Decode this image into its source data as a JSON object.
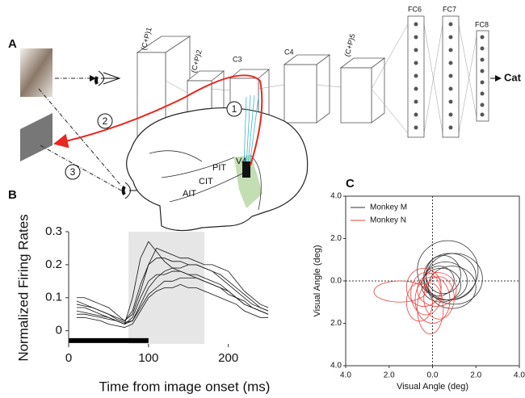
{
  "panel_labels": [
    "A",
    "B",
    "C"
  ],
  "diagram": {
    "layers": [
      "(C+P)1",
      "(C+P)2",
      "C3",
      "C4",
      "(C+P)5",
      "FC6",
      "FC7",
      "FC8"
    ],
    "output": "Cat",
    "steps": [
      "1",
      "2",
      "3"
    ],
    "areas": [
      "V4",
      "PIT",
      "CIT",
      "AIT"
    ]
  },
  "chart_data": [
    {
      "type": "line",
      "xlabel": "Time from image onset (ms)",
      "ylabel": "Normalized Firing Rates",
      "xlim": [
        0,
        260
      ],
      "ylim": [
        -0.04,
        0.3
      ],
      "xticks": [
        0,
        100,
        200
      ],
      "yticks": [
        0,
        0.1,
        0.2,
        0.3
      ],
      "shade": [
        75,
        170
      ],
      "stimulus_bar": [
        0,
        100,
        -0.03
      ],
      "x": [
        10,
        20,
        30,
        40,
        50,
        60,
        70,
        80,
        90,
        100,
        110,
        120,
        130,
        140,
        150,
        160,
        170,
        180,
        190,
        200,
        210,
        220,
        230,
        240,
        250
      ],
      "series": [
        {
          "color": "#111",
          "values": [
            0.09,
            0.08,
            0.07,
            0.06,
            0.05,
            0.04,
            0.03,
            0.06,
            0.14,
            0.2,
            0.22,
            0.22,
            0.21,
            0.21,
            0.2,
            0.2,
            0.19,
            0.18,
            0.17,
            0.15,
            0.13,
            0.11,
            0.09,
            0.07,
            0.06
          ]
        },
        {
          "color": "#111",
          "values": [
            0.06,
            0.055,
            0.05,
            0.045,
            0.04,
            0.03,
            0.02,
            0.04,
            0.1,
            0.15,
            0.17,
            0.17,
            0.18,
            0.18,
            0.17,
            0.17,
            0.16,
            0.15,
            0.14,
            0.12,
            0.1,
            0.09,
            0.07,
            0.06,
            0.05
          ]
        },
        {
          "color": "#111",
          "values": [
            0.1,
            0.1,
            0.09,
            0.08,
            0.07,
            0.05,
            0.03,
            0.05,
            0.12,
            0.2,
            0.25,
            0.24,
            0.23,
            0.22,
            0.22,
            0.21,
            0.2,
            0.2,
            0.19,
            0.18,
            0.15,
            0.12,
            0.1,
            0.08,
            0.07
          ]
        },
        {
          "color": "#111",
          "values": [
            0.04,
            0.04,
            0.035,
            0.03,
            0.02,
            0.015,
            0.01,
            0.02,
            0.06,
            0.1,
            0.12,
            0.13,
            0.13,
            0.14,
            0.13,
            0.13,
            0.12,
            0.11,
            0.1,
            0.09,
            0.08,
            0.06,
            0.05,
            0.04,
            0.04
          ]
        },
        {
          "color": "#111",
          "values": [
            0.07,
            0.07,
            0.06,
            0.05,
            0.04,
            0.03,
            0.02,
            0.1,
            0.22,
            0.27,
            0.24,
            0.21,
            0.19,
            0.18,
            0.17,
            0.16,
            0.15,
            0.14,
            0.13,
            0.12,
            0.1,
            0.08,
            0.07,
            0.06,
            0.05
          ]
        },
        {
          "color": "#111",
          "values": [
            0.08,
            0.075,
            0.07,
            0.06,
            0.05,
            0.035,
            0.025,
            0.03,
            0.08,
            0.13,
            0.16,
            0.18,
            0.19,
            0.19,
            0.2,
            0.2,
            0.19,
            0.18,
            0.16,
            0.14,
            0.12,
            0.1,
            0.08,
            0.07,
            0.06
          ]
        },
        {
          "color": "#111",
          "values": [
            0.05,
            0.05,
            0.045,
            0.04,
            0.035,
            0.03,
            0.02,
            0.03,
            0.07,
            0.11,
            0.13,
            0.15,
            0.15,
            0.16,
            0.16,
            0.16,
            0.15,
            0.14,
            0.13,
            0.11,
            0.1,
            0.08,
            0.07,
            0.06,
            0.05
          ]
        }
      ]
    },
    {
      "type": "ellipse",
      "xlabel": "Visual Angle (deg)",
      "ylabel": "Visual Angle (deg)",
      "xlim": [
        -4,
        4
      ],
      "ylim": [
        -4,
        4
      ],
      "xticks": [
        {
          "value": -4,
          "label": "4.0"
        },
        {
          "value": -2,
          "label": "2.0"
        },
        {
          "value": 0,
          "label": "0.0"
        },
        {
          "value": 2,
          "label": "2.0"
        },
        {
          "value": 4,
          "label": "4.0"
        }
      ],
      "yticks": [
        {
          "value": -4,
          "label": "4.0"
        },
        {
          "value": -2,
          "label": "2.0"
        },
        {
          "value": 0,
          "label": "0.0"
        },
        {
          "value": 2,
          "label": "2.0"
        },
        {
          "value": 4,
          "label": "4.0"
        }
      ],
      "series": [
        {
          "name": "Monkey M",
          "color": "#333333",
          "cx": [
            0.6,
            0.8,
            0.4,
            1.0,
            0.5,
            0.9,
            0.3,
            0.7
          ],
          "cy": [
            0.0,
            0.2,
            -0.2,
            0.1,
            0.3,
            -0.3,
            0.0,
            0.5
          ],
          "rx": [
            1.0,
            1.2,
            0.9,
            1.3,
            0.8,
            1.1,
            0.7,
            1.4
          ],
          "ry": [
            0.9,
            1.1,
            0.8,
            1.2,
            0.9,
            1.0,
            0.7,
            1.4
          ]
        },
        {
          "name": "Monkey N",
          "color": "#e8413c",
          "cx": [
            -0.3,
            0.0,
            -0.6,
            0.2,
            -0.1,
            -1.5,
            0.3,
            -0.4
          ],
          "cy": [
            -0.6,
            -0.9,
            -1.0,
            -0.4,
            -1.3,
            -0.5,
            -0.8,
            -0.3
          ],
          "rx": [
            0.7,
            0.8,
            0.6,
            0.9,
            0.6,
            1.2,
            0.7,
            0.8
          ],
          "ry": [
            1.0,
            1.1,
            0.9,
            0.8,
            1.2,
            0.5,
            1.0,
            0.9
          ]
        }
      ]
    }
  ]
}
